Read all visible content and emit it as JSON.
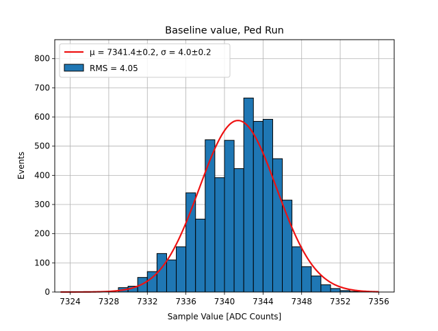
{
  "chart_data": {
    "type": "bar",
    "title": "Baseline value, Ped Run",
    "xlabel": "Sample Value [ADC Counts]",
    "ylabel": "Events",
    "xlim": [
      7322.4,
      7357.6
    ],
    "ylim": [
      0,
      865
    ],
    "grid": true,
    "legend_position": "top-left",
    "x_ticks": [
      7324,
      7328,
      7332,
      7336,
      7340,
      7344,
      7348,
      7352,
      7356
    ],
    "y_ticks": [
      0,
      100,
      200,
      300,
      400,
      500,
      600,
      700,
      800
    ],
    "histogram": {
      "name": "RMS = 4.05",
      "color": "#1f77b4",
      "bin_width": 1,
      "bins": [
        {
          "start": 7329,
          "count": 15
        },
        {
          "start": 7330,
          "count": 20
        },
        {
          "start": 7331,
          "count": 50
        },
        {
          "start": 7332,
          "count": 70
        },
        {
          "start": 7333,
          "count": 132
        },
        {
          "start": 7334,
          "count": 110
        },
        {
          "start": 7335,
          "count": 155
        },
        {
          "start": 7336,
          "count": 340
        },
        {
          "start": 7337,
          "count": 250
        },
        {
          "start": 7338,
          "count": 522
        },
        {
          "start": 7339,
          "count": 392
        },
        {
          "start": 7340,
          "count": 520
        },
        {
          "start": 7341,
          "count": 423
        },
        {
          "start": 7342,
          "count": 665
        },
        {
          "start": 7343,
          "count": 585
        },
        {
          "start": 7344,
          "count": 592
        },
        {
          "start": 7345,
          "count": 457
        },
        {
          "start": 7346,
          "count": 315
        },
        {
          "start": 7347,
          "count": 155
        },
        {
          "start": 7348,
          "count": 87
        },
        {
          "start": 7349,
          "count": 55
        },
        {
          "start": 7350,
          "count": 25
        },
        {
          "start": 7351,
          "count": 12
        },
        {
          "start": 7352,
          "count": 5
        },
        {
          "start": 7353,
          "count": 2
        }
      ]
    },
    "fit": {
      "name": "μ = 7341.4±0.2, σ = 4.0±0.2",
      "color": "#ee1111",
      "mu": 7341.4,
      "sigma": 4.0,
      "amplitude": 588,
      "x_range": [
        7323,
        7356
      ]
    }
  }
}
